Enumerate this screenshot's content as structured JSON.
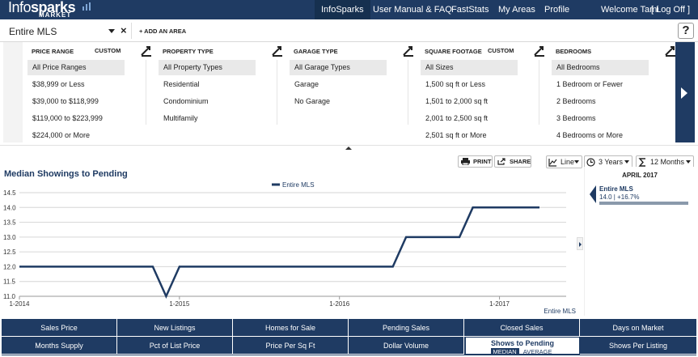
{
  "brand": {
    "logo_part1": "Info",
    "logo_part2": "sparks",
    "logo_sub": "MARKET"
  },
  "nav": {
    "items": [
      "InfoSparks",
      "User Manual & FAQ",
      "FastStats",
      "My Areas",
      "Profile"
    ],
    "welcome": "Welcome Tami",
    "logoff": "[ Log Off ]"
  },
  "area": {
    "selected": "Entire MLS",
    "add_label": "+ ADD AN AREA",
    "help": "?"
  },
  "filters": [
    {
      "header": "PRICE RANGE",
      "custom": "CUSTOM",
      "options": [
        "All Price Ranges",
        "$38,999 or Less",
        "$39,000 to $118,999",
        "$119,000 to $223,999",
        "$224,000 or More"
      ]
    },
    {
      "header": "PROPERTY TYPE",
      "custom": "",
      "options": [
        "All Property Types",
        "Residential",
        "Condominium",
        "Multifamily"
      ]
    },
    {
      "header": "GARAGE TYPE",
      "custom": "",
      "options": [
        "All Garage Types",
        "Garage",
        "No Garage"
      ]
    },
    {
      "header": "SQUARE FOOTAGE",
      "custom": "CUSTOM",
      "options": [
        "All Sizes",
        "1,500 sq ft or Less",
        "1,501 to 2,000 sq ft",
        "2,001 to 2,500 sq ft",
        "2,501 sq ft or More"
      ]
    },
    {
      "header": "BEDROOMS",
      "custom": "",
      "options": [
        "All Bedrooms",
        "1 Bedroom or Fewer",
        "2 Bedrooms",
        "3 Bedrooms",
        "4 Bedrooms or More"
      ]
    }
  ],
  "toolbar": {
    "print": "PRINT",
    "share": "SHARE",
    "chart_type": "Line",
    "range": "3 Years",
    "period": "12 Months"
  },
  "side": {
    "date": "APRIL 2017",
    "area": "Entire MLS",
    "value": "14.0 | +16.7%"
  },
  "source": "Entire MLS",
  "chart_data": {
    "type": "line",
    "title": "Median Showings to Pending",
    "xlabel": "",
    "ylabel": "",
    "ylim": [
      11.0,
      14.5
    ],
    "yticks": [
      "14.5",
      "14.0",
      "13.5",
      "13.0",
      "12.5",
      "12.0",
      "11.5",
      "11.0"
    ],
    "xticks": [
      {
        "label": "1-2014",
        "t": 0
      },
      {
        "label": "1-2015",
        "t": 12
      },
      {
        "label": "1-2016",
        "t": 24
      },
      {
        "label": "1-2017",
        "t": 36
      }
    ],
    "grid": true,
    "legend": "top-center",
    "series": [
      {
        "name": "Entire MLS",
        "color": "#1f3b63",
        "points": [
          [
            0,
            12.0
          ],
          [
            10,
            12.0
          ],
          [
            11,
            11.0
          ],
          [
            12,
            12.0
          ],
          [
            18,
            12.0
          ],
          [
            28,
            12.0
          ],
          [
            29,
            13.0
          ],
          [
            33,
            13.0
          ],
          [
            34,
            14.0
          ],
          [
            39,
            14.0
          ]
        ]
      }
    ]
  },
  "tabs": {
    "row1": [
      "Sales Price",
      "New Listings",
      "Homes for Sale",
      "Pending Sales",
      "Closed Sales",
      "Days on Market"
    ],
    "row2": [
      "Months Supply",
      "Pct of List Price",
      "Price Per Sq Ft",
      "Dollar Volume",
      "Shows to Pending",
      "Shows Per Listing"
    ],
    "active_subs": [
      "MEDIAN",
      "AVERAGE"
    ]
  }
}
